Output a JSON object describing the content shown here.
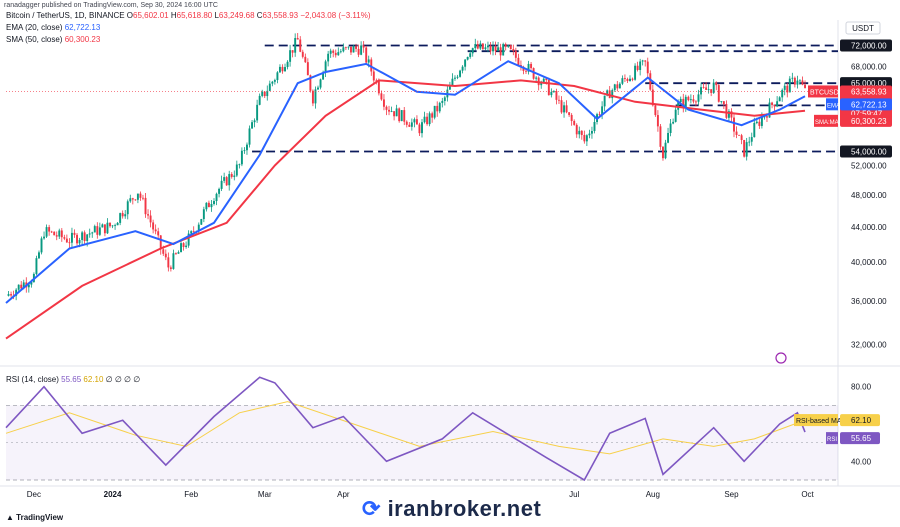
{
  "watermark": "ranadagger published on TradingView.com, Sep 30, 2024 16:00 UTC",
  "header": {
    "symbol": "Bitcoin / TetherUS, 1D, BINANCE",
    "o_label": "O",
    "o_value": "65,602.01",
    "h_label": "H",
    "h_value": "65,618.80",
    "l_label": "L",
    "l_value": "63,249.68",
    "c_label": "C",
    "c_value": "63,558.93",
    "change": "−2,043.08 (−3.11%)"
  },
  "indicators": {
    "ema_label": "EMA (20, close)",
    "ema_value": "62,722.13",
    "sma_label": "SMA (50, close)",
    "sma_value": "60,300.23",
    "rsi_label": "RSI (14, close)",
    "rsi_value": "55.65",
    "rsi_ma_value": "62.10",
    "rsi_extra": "∅ ∅ ∅ ∅"
  },
  "currency": "USDT",
  "footer": {
    "tradingview": "TradingView",
    "brand": "iranbroker.net"
  },
  "colors": {
    "up": "#089981",
    "down": "#f23645",
    "ema": "#2962ff",
    "sma": "#f23645",
    "rsi": "#7e57c2",
    "rsi_ma": "#f7d04a"
  },
  "chart_data": {
    "type": "candlestick",
    "symbol": "BTCUSDT",
    "yscale": "log",
    "ylim": [
      30500,
      75500
    ],
    "price_ticks": [
      32000,
      36000,
      40000,
      44000,
      48000,
      52000,
      68000
    ],
    "price_tick_labels": [
      "32,000.00",
      "36,000.00",
      "40,000.00",
      "44,000.00",
      "48,000.00",
      "52,000.00",
      "68,000.00"
    ],
    "x_labels": [
      "Dec",
      "2024",
      "Feb",
      "Mar",
      "Apr",
      "Jul",
      "Aug",
      "Sep",
      "Oct"
    ],
    "x_label_dates": [
      "2023-12-01",
      "2024-01-01",
      "2024-02-01",
      "2024-03-01",
      "2024-04-01",
      "2024-07-01",
      "2024-08-01",
      "2024-09-01",
      "2024-10-01"
    ],
    "x_range": [
      "2023-11-20",
      "2024-10-13"
    ],
    "horizontal_levels": [
      {
        "value": 72000,
        "label": "72,000.00"
      },
      {
        "value": 65000,
        "label": "65,000.00"
      },
      {
        "value": 61200,
        "label": "61,200.00"
      },
      {
        "value": 54000,
        "label": "54,000.00"
      }
    ],
    "last_price": {
      "label": "BTCUSDT",
      "value": "63,558.93",
      "change": "+70.13%",
      "countdown": "07:59:47"
    },
    "ema_tag": {
      "label": "EMA",
      "value": "62,722.13"
    },
    "sma_tag": {
      "label": "SMA:MA",
      "value": "60,300.23"
    },
    "close_series": [
      [
        "2023-11-20",
        36500
      ],
      [
        "2023-12-01",
        38500
      ],
      [
        "2023-12-05",
        43500
      ],
      [
        "2023-12-15",
        42500
      ],
      [
        "2024-01-01",
        44200
      ],
      [
        "2024-01-11",
        48500
      ],
      [
        "2024-01-20",
        41500
      ],
      [
        "2024-01-23",
        39500
      ],
      [
        "2024-02-01",
        43000
      ],
      [
        "2024-02-10",
        48000
      ],
      [
        "2024-02-20",
        52000
      ],
      [
        "2024-02-28",
        62000
      ],
      [
        "2024-03-05",
        66000
      ],
      [
        "2024-03-14",
        73000
      ],
      [
        "2024-03-20",
        62500
      ],
      [
        "2024-03-26",
        70500
      ],
      [
        "2024-04-08",
        71500
      ],
      [
        "2024-04-18",
        61000
      ],
      [
        "2024-05-01",
        57500
      ],
      [
        "2024-05-10",
        61500
      ],
      [
        "2024-05-21",
        71500
      ],
      [
        "2024-06-05",
        71000
      ],
      [
        "2024-06-20",
        64500
      ],
      [
        "2024-07-05",
        55500
      ],
      [
        "2024-07-15",
        63500
      ],
      [
        "2024-07-29",
        68500
      ],
      [
        "2024-08-05",
        53500
      ],
      [
        "2024-08-10",
        61000
      ],
      [
        "2024-08-25",
        64500
      ],
      [
        "2024-09-06",
        54000
      ],
      [
        "2024-09-10",
        57500
      ],
      [
        "2024-09-20",
        63000
      ],
      [
        "2024-09-27",
        66000
      ],
      [
        "2024-09-30",
        63558.93
      ]
    ],
    "ema20_series": [
      [
        "2023-11-20",
        35800
      ],
      [
        "2023-12-15",
        41500
      ],
      [
        "2024-01-10",
        43500
      ],
      [
        "2024-01-25",
        42000
      ],
      [
        "2024-02-10",
        44500
      ],
      [
        "2024-02-28",
        53500
      ],
      [
        "2024-03-14",
        65000
      ],
      [
        "2024-03-25",
        67000
      ],
      [
        "2024-04-10",
        68500
      ],
      [
        "2024-04-30",
        63500
      ],
      [
        "2024-05-15",
        63000
      ],
      [
        "2024-06-05",
        69000
      ],
      [
        "2024-06-25",
        65000
      ],
      [
        "2024-07-10",
        59000
      ],
      [
        "2024-07-30",
        66000
      ],
      [
        "2024-08-15",
        60500
      ],
      [
        "2024-09-05",
        58000
      ],
      [
        "2024-09-20",
        60500
      ],
      [
        "2024-09-30",
        62722.13
      ]
    ],
    "sma50_series": [
      [
        "2023-11-20",
        32500
      ],
      [
        "2023-12-20",
        37500
      ],
      [
        "2024-01-20",
        41500
      ],
      [
        "2024-02-15",
        44500
      ],
      [
        "2024-03-05",
        52000
      ],
      [
        "2024-03-25",
        59500
      ],
      [
        "2024-04-15",
        65500
      ],
      [
        "2024-05-15",
        64500
      ],
      [
        "2024-06-10",
        65500
      ],
      [
        "2024-07-01",
        64500
      ],
      [
        "2024-07-25",
        61800
      ],
      [
        "2024-08-20",
        60500
      ],
      [
        "2024-09-10",
        59500
      ],
      [
        "2024-09-30",
        60300.23
      ]
    ],
    "rsi": {
      "ylim": [
        30,
        90
      ],
      "ticks": [
        40,
        80
      ],
      "upper_band": 70,
      "lower_band": 30,
      "rsi_ma_tag": {
        "label": "RSI-based MA",
        "value": "62.10"
      },
      "rsi_tag": {
        "label": "RSI",
        "value": "55.65"
      },
      "rsi_series": [
        [
          "2023-11-20",
          58
        ],
        [
          "2023-12-05",
          80
        ],
        [
          "2023-12-20",
          55
        ],
        [
          "2024-01-05",
          62
        ],
        [
          "2024-01-22",
          38
        ],
        [
          "2024-02-10",
          64
        ],
        [
          "2024-02-28",
          85
        ],
        [
          "2024-03-05",
          82
        ],
        [
          "2024-03-20",
          58
        ],
        [
          "2024-04-01",
          64
        ],
        [
          "2024-04-18",
          40
        ],
        [
          "2024-05-10",
          52
        ],
        [
          "2024-05-22",
          66
        ],
        [
          "2024-06-20",
          42
        ],
        [
          "2024-07-05",
          30
        ],
        [
          "2024-07-15",
          55
        ],
        [
          "2024-07-29",
          63
        ],
        [
          "2024-08-05",
          33
        ],
        [
          "2024-08-25",
          58
        ],
        [
          "2024-09-06",
          40
        ],
        [
          "2024-09-20",
          60
        ],
        [
          "2024-09-27",
          66
        ],
        [
          "2024-09-30",
          55.65
        ]
      ],
      "rsi_ma_series": [
        [
          "2023-11-20",
          55
        ],
        [
          "2023-12-15",
          66
        ],
        [
          "2024-01-10",
          54
        ],
        [
          "2024-01-30",
          48
        ],
        [
          "2024-02-20",
          66
        ],
        [
          "2024-03-10",
          72
        ],
        [
          "2024-04-05",
          60
        ],
        [
          "2024-05-01",
          48
        ],
        [
          "2024-05-30",
          56
        ],
        [
          "2024-06-25",
          48
        ],
        [
          "2024-07-15",
          44
        ],
        [
          "2024-08-05",
          52
        ],
        [
          "2024-08-25",
          48
        ],
        [
          "2024-09-10",
          52
        ],
        [
          "2024-09-30",
          62.1
        ]
      ]
    }
  }
}
